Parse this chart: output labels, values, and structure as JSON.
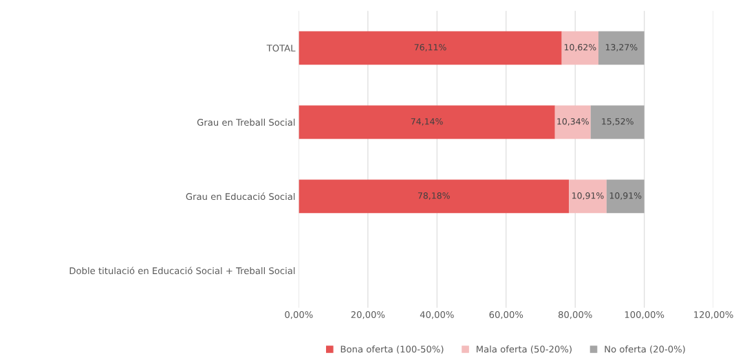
{
  "chart_data": {
    "type": "bar",
    "orientation": "horizontal",
    "stacked": true,
    "categories": [
      "TOTAL",
      "Grau en Treball Social",
      "Grau en Educació Social",
      "Doble titulació en Educació Social + Treball Social"
    ],
    "series": [
      {
        "name": "Bona oferta (100-50%)",
        "color": "#e65353",
        "values": [
          76.11,
          74.14,
          78.18,
          null
        ],
        "value_labels": [
          "76,11%",
          "74,14%",
          "78,18%",
          null
        ]
      },
      {
        "name": "Mala oferta (50-20%)",
        "color": "#f4bcbc",
        "values": [
          10.62,
          10.34,
          10.91,
          null
        ],
        "value_labels": [
          "10,62%",
          "10,34%",
          "10,91%",
          null
        ]
      },
      {
        "name": "No oferta (20-0%)",
        "color": "#a5a5a5",
        "values": [
          13.27,
          15.52,
          10.91,
          null
        ],
        "value_labels": [
          "13,27%",
          "15,52%",
          "10,91%",
          null
        ]
      }
    ],
    "xlim": [
      0,
      120
    ],
    "xticks": [
      {
        "value": 0,
        "label": "0,00%"
      },
      {
        "value": 20,
        "label": "20,00%"
      },
      {
        "value": 40,
        "label": "40,00%"
      },
      {
        "value": 60,
        "label": "60,00%"
      },
      {
        "value": 80,
        "label": "80,00%"
      },
      {
        "value": 100,
        "label": "100,00%"
      },
      {
        "value": 120,
        "label": "120,00%"
      }
    ],
    "grid": "x",
    "legend": "bottom"
  }
}
